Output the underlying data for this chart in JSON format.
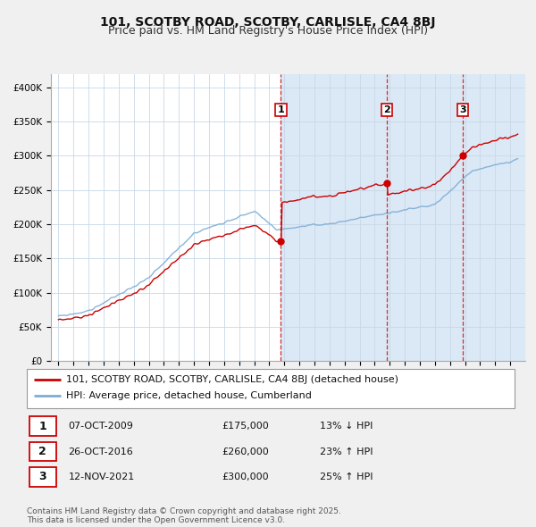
{
  "title": "101, SCOTBY ROAD, SCOTBY, CARLISLE, CA4 8BJ",
  "subtitle": "Price paid vs. HM Land Registry's House Price Index (HPI)",
  "ylim": [
    0,
    420000
  ],
  "yticks": [
    0,
    50000,
    100000,
    150000,
    200000,
    250000,
    300000,
    350000,
    400000
  ],
  "ytick_labels": [
    "£0",
    "£50K",
    "£100K",
    "£150K",
    "£200K",
    "£250K",
    "£300K",
    "£350K",
    "£400K"
  ],
  "red_line_color": "#cc0000",
  "blue_line_color": "#7dadd4",
  "background_color": "#f0f0f0",
  "plot_bg_color": "#ffffff",
  "shade_color": "#dbe8f5",
  "vline_color": "#cc0000",
  "transactions": [
    {
      "label": "1",
      "date_str": "07-OCT-2009",
      "price": 175000,
      "hpi_diff": "13% ↓ HPI",
      "x": 2009.77
    },
    {
      "label": "2",
      "date_str": "26-OCT-2016",
      "price": 260000,
      "hpi_diff": "23% ↑ HPI",
      "x": 2016.82
    },
    {
      "label": "3",
      "date_str": "12-NOV-2021",
      "price": 300000,
      "hpi_diff": "25% ↑ HPI",
      "x": 2021.87
    }
  ],
  "legend_entries": [
    {
      "label": "101, SCOTBY ROAD, SCOTBY, CARLISLE, CA4 8BJ (detached house)",
      "color": "#cc0000"
    },
    {
      "label": "HPI: Average price, detached house, Cumberland",
      "color": "#7dadd4"
    }
  ],
  "footer": "Contains HM Land Registry data © Crown copyright and database right 2025.\nThis data is licensed under the Open Government Licence v3.0.",
  "title_fontsize": 10,
  "subtitle_fontsize": 9,
  "axis_fontsize": 7.5,
  "legend_fontsize": 8,
  "annotation_fontsize": 8,
  "footer_fontsize": 6.5
}
